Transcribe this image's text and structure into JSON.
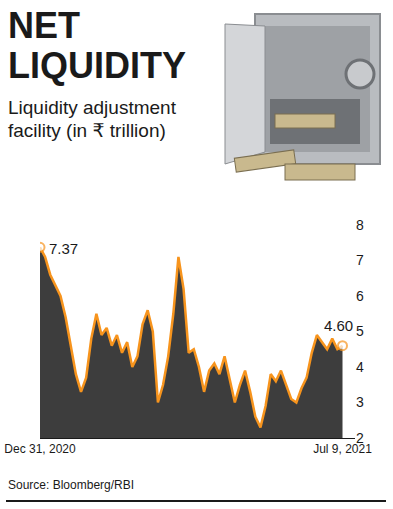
{
  "chart_data": {
    "type": "line",
    "title": "NET LIQUIDITY",
    "subtitle": "Liquidity adjustment facility (in ₹ trillion)",
    "source": "Source: Bloomberg/RBI",
    "categories": [
      "Dec 31, 2020",
      null,
      null,
      null,
      null,
      null,
      null,
      null,
      null,
      null,
      null,
      null,
      null,
      null,
      null,
      null,
      null,
      null,
      null,
      null,
      null,
      null,
      null,
      null,
      null,
      null,
      null,
      null,
      null,
      null,
      null,
      null,
      null,
      null,
      null,
      null,
      null,
      null,
      null,
      null,
      null,
      null,
      null,
      null,
      null,
      null,
      null,
      null,
      null,
      null,
      null,
      null,
      null,
      null,
      null,
      null,
      null,
      null,
      null,
      "Jul 9, 2021"
    ],
    "values": [
      7.37,
      7.1,
      6.6,
      6.3,
      6.0,
      5.4,
      4.6,
      3.8,
      3.3,
      3.7,
      4.8,
      5.5,
      4.9,
      5.1,
      4.6,
      4.9,
      4.4,
      4.7,
      4.0,
      4.3,
      5.2,
      5.6,
      5.0,
      3.0,
      3.5,
      4.3,
      5.5,
      7.1,
      6.2,
      4.4,
      4.5,
      4.0,
      3.3,
      3.9,
      4.1,
      3.8,
      4.3,
      3.6,
      3.0,
      3.5,
      3.9,
      3.3,
      2.6,
      2.3,
      2.9,
      3.8,
      3.6,
      3.9,
      3.5,
      3.1,
      3.0,
      3.4,
      3.7,
      4.4,
      4.9,
      4.7,
      4.5,
      4.8,
      4.5,
      4.6
    ],
    "color": "#f7941d",
    "marker": "circle",
    "annotations": [
      {
        "x": "Dec 31, 2020",
        "text": "7.37"
      },
      {
        "x": "Jul 9, 2021",
        "text": "4.60"
      }
    ],
    "ylim": [
      2,
      8
    ],
    "yticks": [
      2,
      3,
      4,
      5,
      6,
      7,
      8
    ],
    "grid": false
  }
}
